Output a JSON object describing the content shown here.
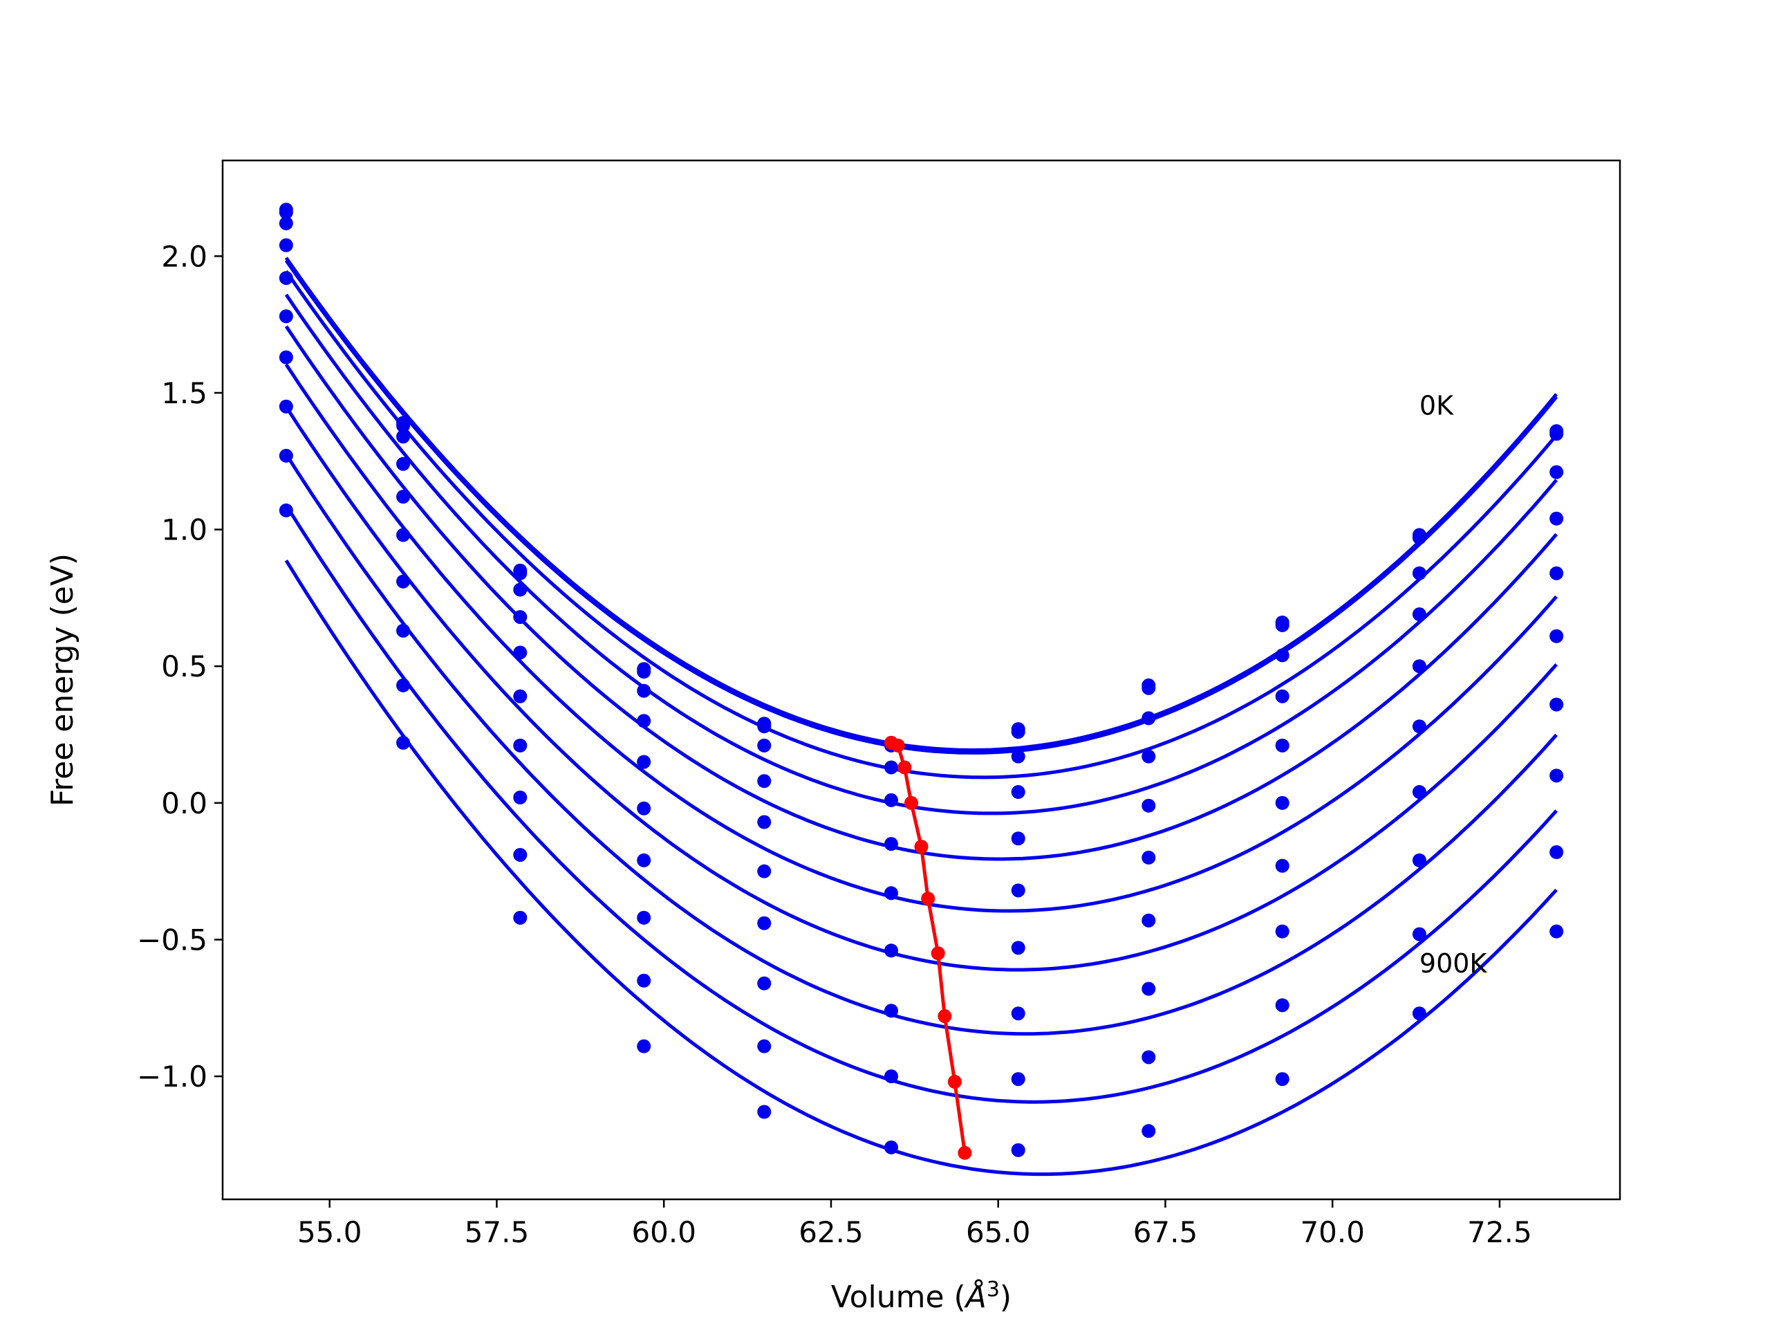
{
  "chart_data": {
    "type": "line",
    "xlabel": "Volume (",
    "xlabel_unit_symbol": "Å",
    "xlabel_unit_power": "3",
    "xlabel_close": ")",
    "ylabel": "Free energy (eV)",
    "xlim": [
      53.4,
      74.3
    ],
    "ylim": [
      -1.45,
      2.35
    ],
    "x_ticks": [
      55.0,
      57.5,
      60.0,
      62.5,
      65.0,
      67.5,
      70.0,
      72.5
    ],
    "x_tick_labels": [
      "55.0",
      "57.5",
      "60.0",
      "62.5",
      "65.0",
      "67.5",
      "70.0",
      "72.5"
    ],
    "y_ticks": [
      2.0,
      1.5,
      1.0,
      0.5,
      0.0,
      -0.5,
      -1.0
    ],
    "y_tick_labels": [
      "2.0",
      "1.5",
      "1.0",
      "0.5",
      "0.0",
      "−0.5",
      "−1.0"
    ],
    "grid": false,
    "annotations": [
      {
        "text": "0K",
        "x": 71.3,
        "y": 1.42
      },
      {
        "text": "900K",
        "x": 71.3,
        "y": -0.62
      }
    ],
    "curve_color": "#0000ee",
    "min_color": "#ff0000",
    "volumes": [
      54.35,
      56.1,
      57.85,
      59.7,
      61.5,
      63.4,
      65.3,
      67.25,
      69.25,
      71.3,
      73.35
    ],
    "series": [
      {
        "values": [
          2.17,
          1.39,
          0.85,
          0.49,
          0.29,
          0.22,
          0.27,
          0.43,
          0.66,
          0.98,
          1.36
        ]
      },
      {
        "values": [
          2.16,
          1.38,
          0.84,
          0.48,
          0.28,
          0.21,
          0.26,
          0.42,
          0.65,
          0.97,
          1.35
        ]
      },
      {
        "values": [
          2.12,
          1.34,
          0.78,
          0.41,
          0.21,
          0.13,
          0.17,
          0.31,
          0.54,
          0.84,
          1.21
        ]
      },
      {
        "values": [
          2.04,
          1.24,
          0.68,
          0.3,
          0.08,
          0.01,
          0.04,
          0.17,
          0.39,
          0.69,
          1.04
        ]
      },
      {
        "values": [
          1.92,
          1.12,
          0.55,
          0.15,
          -0.07,
          -0.15,
          -0.13,
          -0.01,
          0.21,
          0.5,
          0.84
        ]
      },
      {
        "values": [
          1.78,
          0.98,
          0.39,
          -0.02,
          -0.25,
          -0.33,
          -0.32,
          -0.2,
          0.0,
          0.28,
          0.61
        ]
      },
      {
        "values": [
          1.63,
          0.81,
          0.21,
          -0.21,
          -0.44,
          -0.54,
          -0.53,
          -0.43,
          -0.23,
          0.04,
          0.36
        ]
      },
      {
        "values": [
          1.45,
          0.63,
          0.02,
          -0.42,
          -0.66,
          -0.76,
          -0.77,
          -0.68,
          -0.47,
          -0.21,
          0.1
        ]
      },
      {
        "values": [
          1.27,
          0.43,
          -0.19,
          -0.65,
          -0.89,
          -1.0,
          -1.01,
          -0.93,
          -0.74,
          -0.48,
          -0.18
        ]
      },
      {
        "values": [
          1.07,
          0.22,
          -0.42,
          -0.89,
          -1.13,
          -1.26,
          -1.27,
          -1.2,
          -1.01,
          -0.77,
          -0.47
        ]
      }
    ],
    "minimum_line": {
      "x": [
        63.4,
        63.5,
        63.6,
        63.7,
        63.85,
        63.95,
        64.1,
        64.2,
        64.35,
        64.5
      ],
      "y": [
        0.22,
        0.21,
        0.13,
        0.0,
        -0.16,
        -0.35,
        -0.55,
        -0.78,
        -1.02,
        -1.28
      ]
    }
  }
}
